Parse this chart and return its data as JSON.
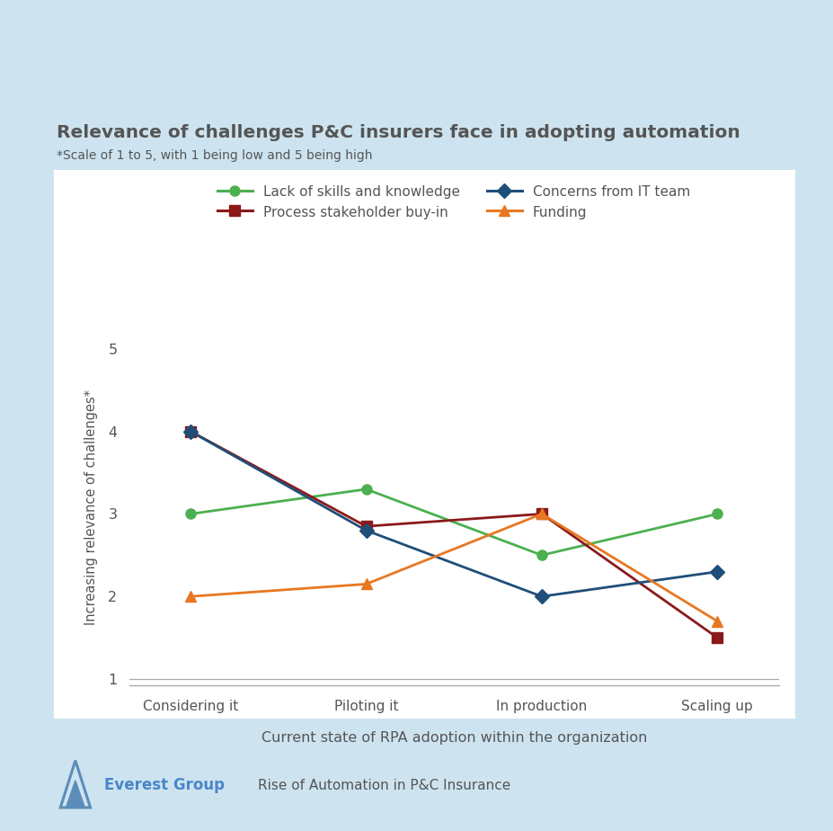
{
  "title": "Relevance of challenges P&C insurers face in adopting automation",
  "subtitle": "*Scale of 1 to 5, with 1 being low and 5 being high",
  "xlabel": "Current state of RPA adoption within the organization",
  "ylabel": "Increasing relevance of challenges*",
  "x_categories": [
    "Considering it",
    "Piloting it",
    "In production",
    "Scaling up"
  ],
  "ylim": [
    1,
    5
  ],
  "yticks": [
    1,
    2,
    3,
    4,
    5
  ],
  "series": [
    {
      "label": "Lack of skills and knowledge",
      "color": "#4CAF50",
      "marker": "o",
      "values": [
        3.0,
        3.3,
        2.5,
        3.0
      ]
    },
    {
      "label": "Process stakeholder buy-in",
      "color": "#8B1A1A",
      "marker": "s",
      "values": [
        4.0,
        2.85,
        3.0,
        1.5
      ]
    },
    {
      "label": "Concerns from IT team",
      "color": "#1f4e79",
      "marker": "D",
      "values": [
        4.0,
        2.8,
        2.0,
        2.3
      ]
    },
    {
      "label": "Funding",
      "color": "#E87722",
      "marker": "^",
      "values": [
        2.0,
        2.15,
        3.0,
        1.7
      ]
    }
  ],
  "background_color": "#cde4f0",
  "plot_bg_color": "#ffffff",
  "title_color": "#555555",
  "axis_label_color": "#555555",
  "tick_color": "#555555",
  "footer_text": "Rise of Automation in P&C Insurance",
  "footer_logo_text": "Everest Group"
}
